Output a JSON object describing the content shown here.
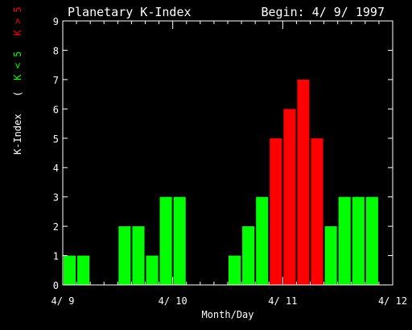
{
  "chart_data": {
    "type": "bar",
    "title": "Planetary K-Index",
    "subtitle": "Begin: 4/ 9/ 1997",
    "xlabel": "Month/Day",
    "ylabel_main": "K-Index",
    "ylabel_legend_open": "(",
    "ylabel_green": "K < 5",
    "ylabel_red": "K > 5",
    "ylim": [
      0,
      9
    ],
    "y_ticks": [
      "0",
      "1",
      "2",
      "3",
      "4",
      "5",
      "6",
      "7",
      "8",
      "9"
    ],
    "x_ticks": [
      "4/ 9",
      "4/ 10",
      "4/ 11",
      "4/ 12"
    ],
    "bins_per_day": 8,
    "days": 3,
    "values": [
      1,
      1,
      null,
      null,
      2,
      2,
      1,
      3,
      3,
      null,
      null,
      null,
      1,
      2,
      3,
      5,
      6,
      7,
      5,
      2,
      3,
      3,
      3,
      null
    ],
    "colors": {
      "low": "#00ff00",
      "high": "#ff0000",
      "axis": "#ffffff"
    },
    "threshold": 5
  }
}
